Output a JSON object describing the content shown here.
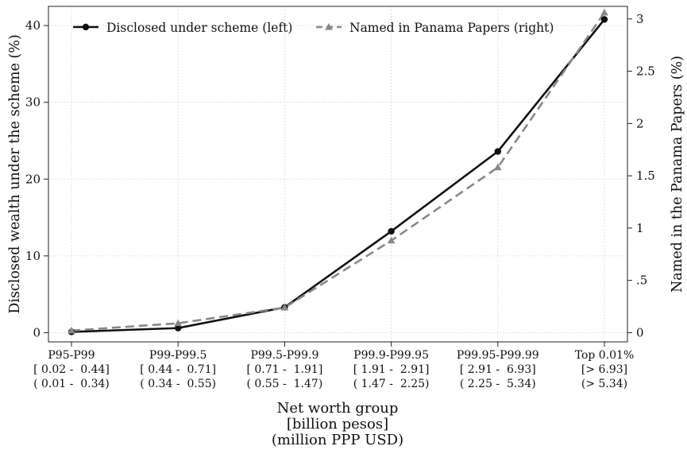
{
  "chart_data": {
    "type": "line",
    "categories": [
      {
        "name": "P95-P99",
        "pesos": "[ 0.02 -  0.44]",
        "usd": "( 0.01 -  0.34)"
      },
      {
        "name": "P99-P99.5",
        "pesos": "[ 0.44 -  0.71]",
        "usd": "( 0.34 -  0.55)"
      },
      {
        "name": "P99.5-P99.9",
        "pesos": "[ 0.71 -  1.91]",
        "usd": "( 0.55 -  1.47)"
      },
      {
        "name": "P99.9-P99.95",
        "pesos": "[ 1.91 -  2.91]",
        "usd": "( 1.47 -  2.25)"
      },
      {
        "name": "P99.95-P99.99",
        "pesos": "[ 2.91 -  6.93]",
        "usd": "( 2.25 -  5.34)"
      },
      {
        "name": "Top 0.01%",
        "pesos": "[> 6.93]",
        "usd": "(> 5.34)"
      }
    ],
    "series": [
      {
        "name": "Disclosed under scheme (left)",
        "axis": "left",
        "color": "#111111",
        "dash": "solid",
        "marker": "circle",
        "values": [
          0.1,
          0.6,
          3.3,
          13.2,
          23.6,
          40.8
        ]
      },
      {
        "name": "Named in Panama Papers (right)",
        "axis": "right",
        "color": "#888888",
        "dash": "dashed",
        "marker": "triangle",
        "values": [
          0.02,
          0.09,
          0.24,
          0.88,
          1.58,
          3.06
        ]
      }
    ],
    "xlabel": [
      "Net worth group",
      "[billion pesos]",
      "(million PPP USD)"
    ],
    "ylabel_left": "Disclosed wealth under the scheme (%)",
    "ylabel_right": "Named in the Panama Papers (%)",
    "ylim_left": [
      -1.2,
      42.5
    ],
    "yticks_left": [
      0,
      10,
      20,
      30,
      40
    ],
    "ylim_right": [
      -0.088,
      3.12
    ],
    "yticks_right": [
      {
        "v": 0,
        "label": "0"
      },
      {
        "v": 0.5,
        "label": ".5"
      },
      {
        "v": 1,
        "label": "1"
      },
      {
        "v": 1.5,
        "label": "1.5"
      },
      {
        "v": 2,
        "label": "2"
      },
      {
        "v": 2.5,
        "label": "2.5"
      },
      {
        "v": 3,
        "label": "3"
      }
    ],
    "grid": true,
    "legend_position": "top"
  }
}
